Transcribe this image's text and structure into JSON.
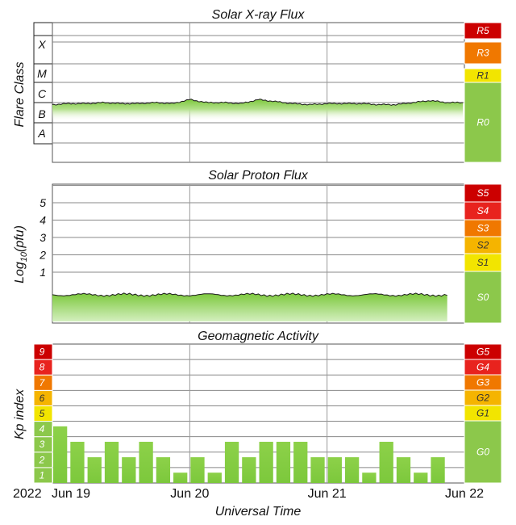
{
  "panels": {
    "xray": {
      "title": "Solar X-ray Flux",
      "ylabel": "Flare Class",
      "classes": [
        "X",
        "M",
        "C",
        "B",
        "A"
      ],
      "scale": [
        {
          "label": "R5",
          "color": "#cc0000"
        },
        {
          "label": "R3",
          "color": "#f07800"
        },
        {
          "label": "R1",
          "color": "#f2e500"
        },
        {
          "label": "R0",
          "color": "#8cc84b"
        }
      ]
    },
    "proton": {
      "title": "Solar Proton Flux",
      "ylabel": "Log10(pfu)",
      "ticks": [
        "1",
        "2",
        "3",
        "4",
        "5"
      ],
      "scale": [
        {
          "label": "S5",
          "color": "#cc0000"
        },
        {
          "label": "S4",
          "color": "#e8231e"
        },
        {
          "label": "S3",
          "color": "#f07800"
        },
        {
          "label": "S2",
          "color": "#f5b400"
        },
        {
          "label": "S1",
          "color": "#f2e500"
        },
        {
          "label": "S0",
          "color": "#8cc84b"
        }
      ]
    },
    "kp": {
      "title": "Geomagnetic Activity",
      "ylabel": "Kp index",
      "levels": [
        {
          "label": "1",
          "color": "#8cc84b"
        },
        {
          "label": "2",
          "color": "#8cc84b"
        },
        {
          "label": "3",
          "color": "#8cc84b"
        },
        {
          "label": "4",
          "color": "#8cc84b"
        },
        {
          "label": "5",
          "color": "#f2e500"
        },
        {
          "label": "6",
          "color": "#f5b400"
        },
        {
          "label": "7",
          "color": "#f07800"
        },
        {
          "label": "8",
          "color": "#e8231e"
        },
        {
          "label": "9",
          "color": "#cc0000"
        }
      ],
      "scale": [
        {
          "label": "G5",
          "color": "#cc0000"
        },
        {
          "label": "G4",
          "color": "#e8231e"
        },
        {
          "label": "G3",
          "color": "#f07800"
        },
        {
          "label": "G2",
          "color": "#f5b400"
        },
        {
          "label": "G1",
          "color": "#f2e500"
        },
        {
          "label": "G0",
          "color": "#8cc84b"
        }
      ]
    }
  },
  "xaxis": {
    "title": "Universal Time",
    "year": "2022",
    "ticks": [
      "Jun 19",
      "Jun 20",
      "Jun 21",
      "Jun 22"
    ]
  },
  "chart_data": [
    {
      "type": "area",
      "title": "Solar X-ray Flux",
      "ylabel": "Flare Class",
      "x_range": [
        "2022-06-19 00:00",
        "2022-06-22 00:00"
      ],
      "y_scale": "log",
      "y_ticks": [
        "A",
        "B",
        "C",
        "M",
        "X"
      ],
      "series": [
        {
          "x_hours": [
            0,
            3,
            6,
            9,
            12,
            15,
            18,
            21,
            24,
            27,
            30,
            33,
            36,
            39,
            42,
            45,
            48,
            51,
            54,
            57,
            60,
            63,
            66,
            69
          ],
          "log_flux": [
            -6.1,
            -6.05,
            -6.05,
            -6.0,
            -6.05,
            -6.05,
            -6.0,
            -6.05,
            -5.85,
            -6.0,
            -6.0,
            -6.05,
            -5.85,
            -5.95,
            -6.05,
            -6.1,
            -6.05,
            -6.05,
            -6.05,
            -6.1,
            -6.1,
            -6.0,
            -5.9,
            -6.0
          ]
        }
      ]
    },
    {
      "type": "area",
      "title": "Solar Proton Flux",
      "ylabel": "Log10(pfu)",
      "x_range": [
        "2022-06-19 00:00",
        "2022-06-22 00:00"
      ],
      "ylim": [
        -1.2,
        6
      ],
      "y_ticks": [
        1,
        2,
        3,
        4,
        5
      ],
      "series": [
        {
          "x_hours": [
            0,
            12,
            24,
            36,
            48,
            60,
            69
          ],
          "log_pfu": [
            -0.3,
            -0.3,
            -0.3,
            -0.3,
            -0.3,
            -0.3,
            -0.3
          ]
        }
      ]
    },
    {
      "type": "bar",
      "title": "Geomagnetic Activity",
      "ylabel": "Kp index",
      "ylim": [
        0,
        9
      ],
      "x_hours": [
        0,
        3,
        6,
        9,
        12,
        15,
        18,
        21,
        24,
        27,
        30,
        33,
        36,
        39,
        42,
        45,
        48,
        51,
        54,
        57,
        60,
        63,
        66,
        69
      ],
      "values": [
        3.67,
        2.67,
        1.67,
        2.67,
        1.67,
        2.67,
        1.67,
        0.67,
        1.67,
        0.67,
        2.67,
        1.67,
        2.67,
        2.67,
        2.67,
        1.67,
        1.67,
        1.67,
        0.67,
        2.67,
        1.67,
        0.67,
        1.67,
        0
      ]
    }
  ]
}
